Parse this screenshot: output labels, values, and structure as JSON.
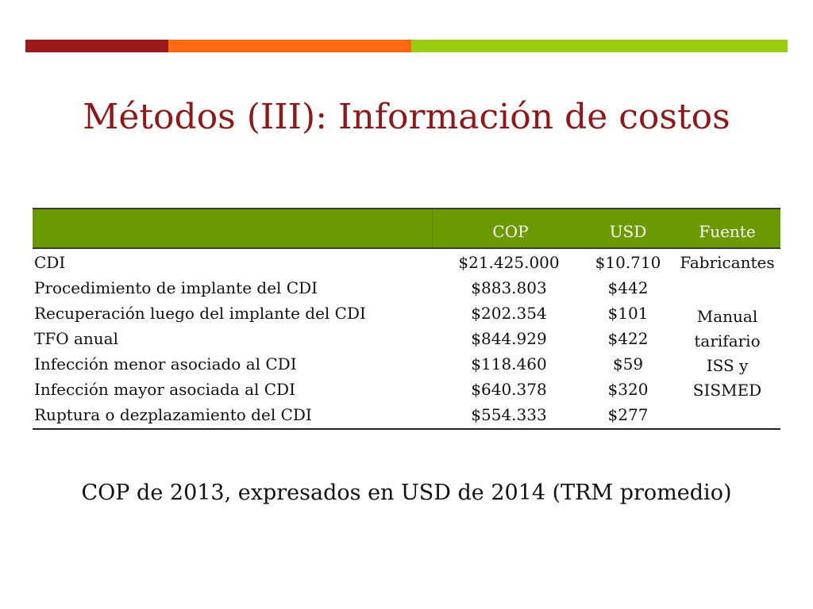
{
  "slide": {
    "title": "Métodos (III): Información de costos",
    "footnote": "COP de 2013, expresados en USD de 2014 (TRM promedio)"
  },
  "colors": {
    "accent_red": "#9b1b1b",
    "accent_orange": "#ff6a10",
    "accent_green": "#99cc11",
    "header_green": "#6b9a00",
    "title_color": "#8c1a1a"
  },
  "table": {
    "headers": {
      "item": "",
      "cop": "COP",
      "usd": "USD",
      "source": "Fuente"
    },
    "rows": [
      {
        "item": "CDI",
        "cop": "$21.425.000",
        "usd": "$10.710",
        "source": "Fabricantes"
      },
      {
        "item": "Procedimiento de implante del CDI",
        "cop": "$883.803",
        "usd": "$442",
        "source": ""
      },
      {
        "item": "Recuperación luego del implante del CDI",
        "cop": "$202.354",
        "usd": "$101",
        "source": ""
      },
      {
        "item": "TFO anual",
        "cop": "$844.929",
        "usd": "$422",
        "source": ""
      },
      {
        "item": "Infección menor asociado al CDI",
        "cop": "$118.460",
        "usd": "$59",
        "source": ""
      },
      {
        "item": "Infección mayor asociada al CDI",
        "cop": "$640.378",
        "usd": "$320",
        "source": ""
      },
      {
        "item": "Ruptura o dezplazamiento del CDI",
        "cop": "$554.333",
        "usd": "$277",
        "source": ""
      }
    ],
    "merged_source": [
      "Manual",
      "tarifario",
      "ISS y",
      "SISMED"
    ]
  }
}
